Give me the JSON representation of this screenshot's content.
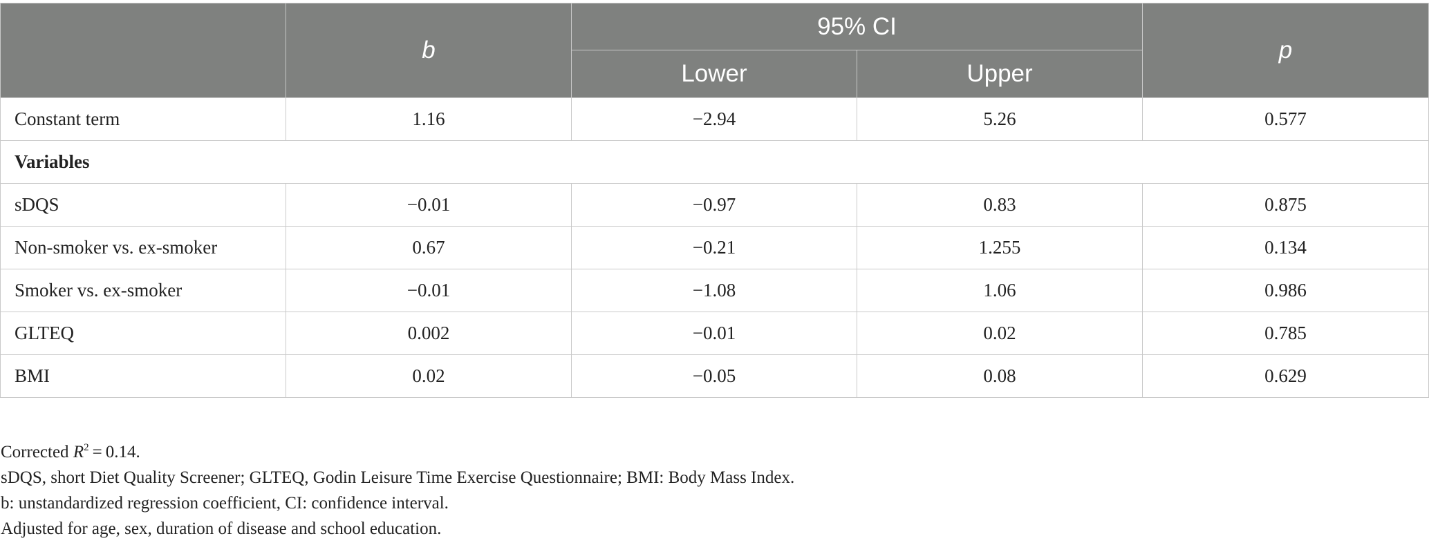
{
  "table": {
    "header": {
      "b": "b",
      "ci_group": "95% CI",
      "lower": "Lower",
      "upper": "Upper",
      "p": "p"
    },
    "constant": {
      "label": "Constant term",
      "b": "1.16",
      "lower": "−2.94",
      "upper": "5.26",
      "p": "0.577"
    },
    "section_label": "Variables",
    "rows": [
      {
        "label": "sDQS",
        "b": "−0.01",
        "lower": "−0.97",
        "upper": "0.83",
        "p": "0.875"
      },
      {
        "label": "Non-smoker vs. ex-smoker",
        "b": "0.67",
        "lower": "−0.21",
        "upper": "1.255",
        "p": "0.134"
      },
      {
        "label": "Smoker vs. ex-smoker",
        "b": "−0.01",
        "lower": "−1.08",
        "upper": "1.06",
        "p": "0.986"
      },
      {
        "label": "GLTEQ",
        "b": "0.002",
        "lower": "−0.01",
        "upper": "0.02",
        "p": "0.785"
      },
      {
        "label": "BMI",
        "b": "0.02",
        "lower": "−0.05",
        "upper": "0.08",
        "p": "0.629"
      }
    ]
  },
  "notes": {
    "r2_prefix": "Corrected ",
    "r2_symbol": "R",
    "r2_exponent": "2",
    "r2_value": " = 0.14.",
    "abbreviations": "sDQS, short Diet Quality Screener; GLTEQ, Godin Leisure Time Exercise Questionnaire; BMI: Body Mass Index.",
    "definitions": "b: unstandardized regression coefficient, CI: confidence interval.",
    "adjustment": "Adjusted for age, sex, duration of disease and school education."
  }
}
